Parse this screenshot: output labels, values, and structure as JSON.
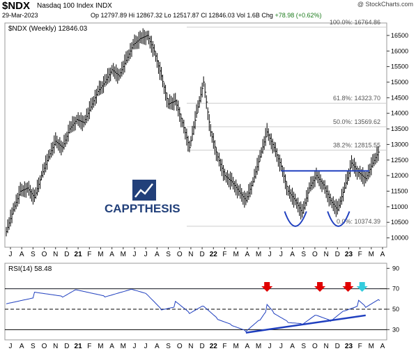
{
  "header": {
    "symbol": "$NDX",
    "name": "Nasdaq 100 Index  INDX",
    "credit": "@ StockCharts.com",
    "date": "29-Mar-2023",
    "open_label": "Op",
    "open": "12797.89",
    "high_label": "Hi",
    "high": "12867.32",
    "low_label": "Lo",
    "low": "12517.87",
    "close_label": "Cl",
    "close": "12846.03",
    "vol_label": "Vol",
    "vol": "1.6B",
    "chg_label": "Chg",
    "chg": "+78.98 (+0.62%)"
  },
  "logo": {
    "text": "CAPPTHESIS"
  },
  "chart_data": [
    {
      "type": "ohlc",
      "legend": "$NDX (Weekly) 12846.03",
      "ylim": [
        9700,
        16900
      ],
      "y_ticks": [
        10000,
        10500,
        11000,
        11500,
        12000,
        12500,
        13000,
        13500,
        14000,
        14500,
        15000,
        15500,
        16000,
        16500
      ],
      "x_tick_labels": [
        "J",
        "A",
        "S",
        "O",
        "N",
        "D",
        "21",
        "F",
        "M",
        "A",
        "M",
        "J",
        "J",
        "A",
        "S",
        "O",
        "N",
        "D",
        "22",
        "F",
        "M",
        "A",
        "M",
        "J",
        "J",
        "A",
        "S",
        "O",
        "N",
        "D",
        "23",
        "F",
        "M",
        "A"
      ],
      "series_points": [
        [
          0,
          10200
        ],
        [
          1,
          10900
        ],
        [
          2,
          11500
        ],
        [
          3,
          11600
        ],
        [
          4,
          11300
        ],
        [
          5,
          12000
        ],
        [
          6,
          12600
        ],
        [
          7,
          13100
        ],
        [
          8,
          12900
        ],
        [
          9,
          13500
        ],
        [
          10,
          13800
        ],
        [
          11,
          13700
        ],
        [
          12,
          14200
        ],
        [
          13,
          14700
        ],
        [
          14,
          15000
        ],
        [
          15,
          15400
        ],
        [
          16,
          15200
        ],
        [
          17,
          15700
        ],
        [
          18,
          16200
        ],
        [
          19,
          16400
        ],
        [
          20,
          16500
        ],
        [
          21,
          16000
        ],
        [
          22,
          15200
        ],
        [
          23,
          14300
        ],
        [
          24,
          14400
        ],
        [
          25,
          13700
        ],
        [
          26,
          12900
        ],
        [
          27,
          14000
        ],
        [
          28,
          15000
        ],
        [
          29,
          13400
        ],
        [
          30,
          12600
        ],
        [
          31,
          12000
        ],
        [
          32,
          11800
        ],
        [
          33,
          11500
        ],
        [
          34,
          11200
        ],
        [
          35,
          11800
        ],
        [
          36,
          12600
        ],
        [
          37,
          13400
        ],
        [
          38,
          12900
        ],
        [
          39,
          12300
        ],
        [
          40,
          11500
        ],
        [
          41,
          11200
        ],
        [
          42,
          10800
        ],
        [
          43,
          11600
        ],
        [
          44,
          12000
        ],
        [
          45,
          11700
        ],
        [
          46,
          11200
        ],
        [
          47,
          10900
        ],
        [
          48,
          11600
        ],
        [
          49,
          12400
        ],
        [
          50,
          12100
        ],
        [
          51,
          11900
        ],
        [
          52,
          12400
        ],
        [
          53,
          12846
        ]
      ],
      "fib_levels": [
        {
          "label": "100.0%: 16764.86",
          "value": 16764.86
        },
        {
          "label": "61.8%: 14323.70",
          "value": 14323.7
        },
        {
          "label": "50.0%: 13569.62",
          "value": 13569.62
        },
        {
          "label": "38.2%: 12815.55",
          "value": 12815.55
        },
        {
          "label": "0.0%: 10374.39",
          "value": 10374.39
        }
      ],
      "neckline": 12150
    },
    {
      "type": "line",
      "legend": "RSI(14) 58.48",
      "ylim": [
        20,
        95
      ],
      "y_ticks": [
        30,
        50,
        70,
        90
      ],
      "reference_lines": [
        30,
        50,
        70
      ],
      "series_points": [
        [
          0,
          58
        ],
        [
          4,
          64
        ],
        [
          8,
          60
        ],
        [
          10,
          68
        ],
        [
          14,
          62
        ],
        [
          18,
          70
        ],
        [
          20,
          66
        ],
        [
          22,
          52
        ],
        [
          24,
          55
        ],
        [
          26,
          44
        ],
        [
          28,
          52
        ],
        [
          30,
          40
        ],
        [
          32,
          35
        ],
        [
          34,
          30
        ],
        [
          36,
          42
        ],
        [
          37,
          52
        ],
        [
          38,
          44
        ],
        [
          40,
          36
        ],
        [
          42,
          35
        ],
        [
          44,
          45
        ],
        [
          46,
          40
        ],
        [
          48,
          51
        ],
        [
          50,
          56
        ],
        [
          51,
          50
        ],
        [
          53,
          58.48
        ]
      ],
      "x_tick_labels": [
        "J",
        "A",
        "S",
        "O",
        "N",
        "D",
        "21",
        "F",
        "M",
        "A",
        "M",
        "J",
        "J",
        "A",
        "S",
        "O",
        "N",
        "D",
        "22",
        "F",
        "M",
        "A",
        "M",
        "J",
        "J",
        "A",
        "S",
        "O",
        "N",
        "D",
        "23",
        "F",
        "M",
        "A"
      ],
      "signal_arrows": [
        {
          "week": 37,
          "color": "#e00000"
        },
        {
          "week": 44.5,
          "color": "#e00000"
        },
        {
          "week": 48.5,
          "color": "#e00000"
        },
        {
          "week": 50.5,
          "color": "#33ccdd"
        }
      ],
      "support_trendline": [
        [
          34,
          27
        ],
        [
          51,
          44
        ]
      ]
    }
  ],
  "colors": {
    "ohlc": "#000000",
    "trend": "#1f3fbf",
    "rsi_line": "#1f3fbf",
    "rsi_fill": "#6f8fd6",
    "up_arrow": "#e00000",
    "cyan_arrow": "#33ccdd"
  }
}
